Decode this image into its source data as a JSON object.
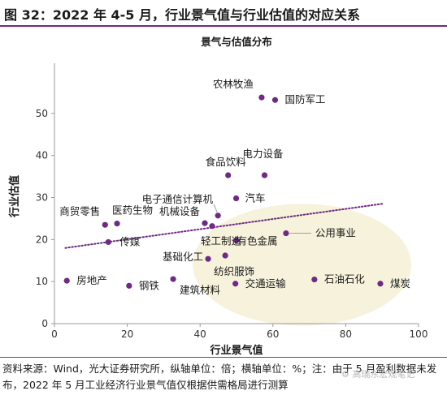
{
  "figure": {
    "title": "图 32：2022 年 4-5 月，行业景气值与行业估值的对应关系",
    "source": "资料来源：Wind，光大证券研究所，纵轴单位：倍；横轴单位：%；注：由于 5 月盈利数据未发布，2022 年 5 月工业经济行业景气值仅根据供需格局进行测算",
    "watermark": "⚙ 高瑞东宏观笔记"
  },
  "chart_data": {
    "type": "scatter",
    "title": "景气与估值分布",
    "xlabel": "行业景气值",
    "ylabel": "行业估值",
    "xlim": [
      0,
      100
    ],
    "ylim": [
      0,
      60
    ],
    "xticks": [
      0,
      20,
      40,
      60,
      80,
      100
    ],
    "yticks": [
      0,
      10,
      20,
      30,
      40,
      50
    ],
    "grid": false,
    "legend": "none",
    "point_color": "#6f2a84",
    "trendline": {
      "type": "linear",
      "x": [
        3,
        90
      ],
      "y": [
        18.0,
        28.5
      ],
      "color": "#6f2a84"
    },
    "highlight_ellipse": {
      "cx": 68,
      "cy": 14,
      "rx": 30,
      "ry": 14.5,
      "color": "#f7f2dc"
    },
    "points": [
      {
        "label": "农林牧渔",
        "x": 56.9,
        "y": 53.8
      },
      {
        "label": "国防军工",
        "x": 60.6,
        "y": 53.2
      },
      {
        "label": "电力设备",
        "x": 57.7,
        "y": 35.3
      },
      {
        "label": "食品饮料",
        "x": 47.7,
        "y": 35.3
      },
      {
        "label": "汽车",
        "x": 49.9,
        "y": 29.8
      },
      {
        "label": "电子通信计算机",
        "x": 44.9,
        "y": 25.7
      },
      {
        "label": "商贸零售",
        "x": 13.9,
        "y": 23.5
      },
      {
        "label": "医药生物",
        "x": 17.2,
        "y": 23.8
      },
      {
        "label": "机械设备",
        "x": 41.3,
        "y": 23.9
      },
      {
        "label": "轻工制造",
        "x": 43.3,
        "y": 23.2
      },
      {
        "label": "公用事业",
        "x": 63.6,
        "y": 21.5
      },
      {
        "label": "有色金属",
        "x": 49.9,
        "y": 19.8
      },
      {
        "label": "传媒",
        "x": 14.8,
        "y": 19.4
      },
      {
        "label": "基础化工",
        "x": 42.2,
        "y": 15.4
      },
      {
        "label": "纺织服饰",
        "x": 46.9,
        "y": 16.2
      },
      {
        "label": "房地产",
        "x": 3.4,
        "y": 10.2
      },
      {
        "label": "钢铁",
        "x": 20.5,
        "y": 9.0
      },
      {
        "label": "建筑材料",
        "x": 32.6,
        "y": 10.6
      },
      {
        "label": "交通运输",
        "x": 49.7,
        "y": 9.5
      },
      {
        "label": "石油石化",
        "x": 71.4,
        "y": 10.5
      },
      {
        "label": "煤炭",
        "x": 89.5,
        "y": 9.5
      }
    ]
  }
}
